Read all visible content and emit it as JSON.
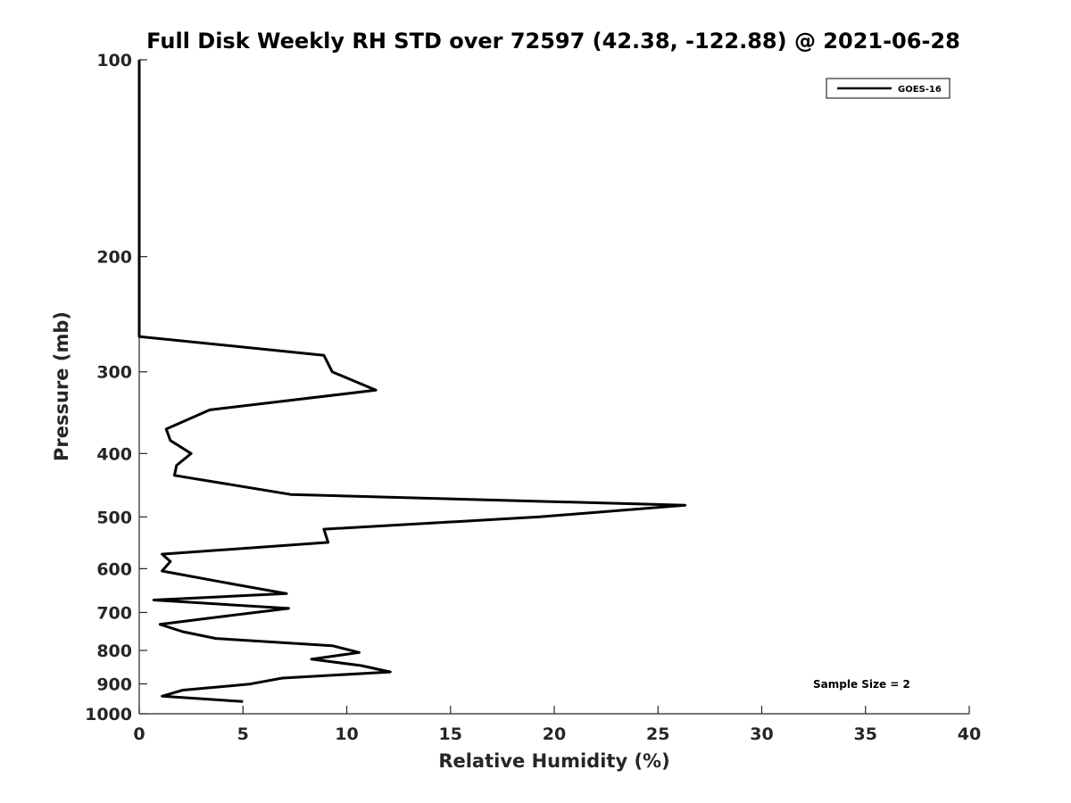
{
  "chart_data": {
    "type": "line",
    "title": "Full Disk Weekly RH STD over 72597 (42.38, -122.88) @ 2021-06-28",
    "xlabel": "Relative Humidity (%)",
    "ylabel": "Pressure (mb)",
    "xlim": [
      0,
      40
    ],
    "ylim": [
      100,
      1000
    ],
    "y_scale": "log",
    "y_reversed": true,
    "x_ticks": [
      0,
      5,
      10,
      15,
      20,
      25,
      30,
      35,
      40
    ],
    "y_ticks": [
      100,
      200,
      300,
      400,
      500,
      600,
      700,
      800,
      900,
      1000
    ],
    "grid": false,
    "legend_position": "top-right",
    "note": "Sample Size = 2",
    "series": [
      {
        "name": "GOES-16",
        "color": "#000000",
        "points": [
          [
            0,
            100
          ],
          [
            0,
            150
          ],
          [
            0,
            200
          ],
          [
            0,
            250
          ],
          [
            0,
            265
          ],
          [
            8.9,
            283
          ],
          [
            9.3,
            300
          ],
          [
            11.4,
            320
          ],
          [
            3.4,
            343
          ],
          [
            1.3,
            367
          ],
          [
            1.5,
            382
          ],
          [
            2.5,
            400
          ],
          [
            1.8,
            417
          ],
          [
            1.7,
            432
          ],
          [
            7.3,
            462
          ],
          [
            26.3,
            480
          ],
          [
            19.3,
            500
          ],
          [
            8.9,
            522
          ],
          [
            9.1,
            547
          ],
          [
            1.1,
            570
          ],
          [
            1.5,
            585
          ],
          [
            1.1,
            605
          ],
          [
            4.7,
            635
          ],
          [
            7.1,
            655
          ],
          [
            0.7,
            670
          ],
          [
            7.2,
            690
          ],
          [
            3.7,
            712
          ],
          [
            1.0,
            730
          ],
          [
            2.1,
            749
          ],
          [
            3.7,
            767
          ],
          [
            9.3,
            787
          ],
          [
            10.6,
            806
          ],
          [
            8.3,
            825
          ],
          [
            10.7,
            844
          ],
          [
            12.1,
            863
          ],
          [
            6.9,
            882
          ],
          [
            5.3,
            901
          ],
          [
            2.1,
            920
          ],
          [
            1.1,
            940
          ],
          [
            5.0,
            958
          ]
        ]
      }
    ]
  }
}
